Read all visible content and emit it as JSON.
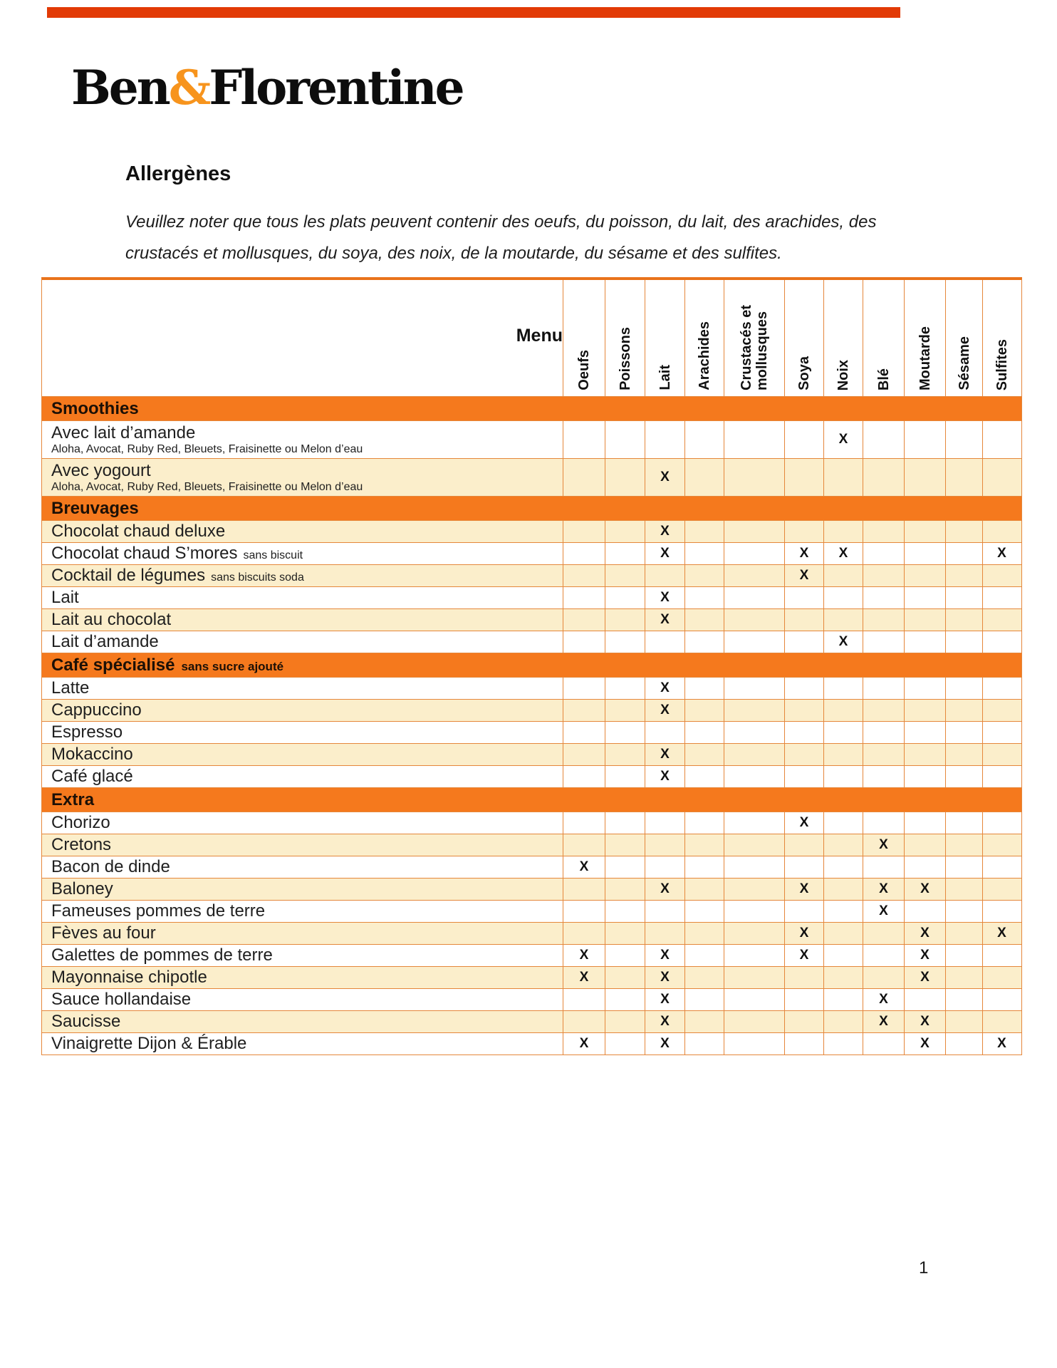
{
  "logo": {
    "ben": "Ben",
    "amp": "&",
    "florentine": "Florentine"
  },
  "heading": "Allergènes",
  "note_lines": [
    "Veuillez noter que tous les plats peuvent contenir des oeufs, du poisson, du lait, des arachides, des",
    "crustacés et mollusques, du soya, des noix, de la moutarde, du sésame et des sulfites."
  ],
  "page_number": "1",
  "colors": {
    "section_bar": "#F5791D",
    "grid_line": "#E5873B",
    "table_top_border": "#E9731B",
    "alt_row": "#FBEECB",
    "ampersand": "#F7941D",
    "top_accent_bar": "#E23A06"
  },
  "table": {
    "menu_header": "Menu",
    "mark": "X",
    "columns": [
      "Oeufs",
      "Poissons",
      "Lait",
      "Arachides",
      "Crustacés et mollusques",
      "Soya",
      "Noix",
      "Blé",
      "Moutarde",
      "Sésame",
      "Sulfites"
    ],
    "sections": [
      {
        "label": "Smoothies",
        "suffix": "",
        "items": [
          {
            "name": "Avec lait d’amande",
            "suffix": "",
            "note": "Aloha, Avocat, Ruby Red, Bleuets, Fraisinette ou Melon d’eau",
            "allergens": [
              "Noix"
            ]
          },
          {
            "name": "Avec yogourt",
            "suffix": "",
            "note": "Aloha, Avocat, Ruby Red, Bleuets, Fraisinette ou Melon d’eau",
            "allergens": [
              "Lait"
            ]
          }
        ]
      },
      {
        "label": "Breuvages",
        "suffix": "",
        "items": [
          {
            "name": "Chocolat chaud deluxe",
            "suffix": "",
            "note": "",
            "allergens": [
              "Lait"
            ]
          },
          {
            "name": "Chocolat chaud S’mores",
            "suffix": "sans biscuit",
            "note": "",
            "allergens": [
              "Lait",
              "Soya",
              "Noix",
              "Sulfites"
            ]
          },
          {
            "name": "Cocktail de légumes",
            "suffix": "sans biscuits soda",
            "note": "",
            "allergens": [
              "Soya"
            ]
          },
          {
            "name": "Lait",
            "suffix": "",
            "note": "",
            "allergens": [
              "Lait"
            ]
          },
          {
            "name": "Lait au chocolat",
            "suffix": "",
            "note": "",
            "allergens": [
              "Lait"
            ]
          },
          {
            "name": "Lait d’amande",
            "suffix": "",
            "note": "",
            "allergens": [
              "Noix"
            ]
          }
        ]
      },
      {
        "label": "Café spécialisé",
        "suffix": "sans sucre ajouté",
        "items": [
          {
            "name": "Latte",
            "suffix": "",
            "note": "",
            "allergens": [
              "Lait"
            ]
          },
          {
            "name": "Cappuccino",
            "suffix": "",
            "note": "",
            "allergens": [
              "Lait"
            ]
          },
          {
            "name": "Espresso",
            "suffix": "",
            "note": "",
            "allergens": []
          },
          {
            "name": "Mokaccino",
            "suffix": "",
            "note": "",
            "allergens": [
              "Lait"
            ]
          },
          {
            "name": "Café glacé",
            "suffix": "",
            "note": "",
            "allergens": [
              "Lait"
            ]
          }
        ]
      },
      {
        "label": "Extra",
        "suffix": "",
        "items": [
          {
            "name": "Chorizo",
            "suffix": "",
            "note": "",
            "allergens": [
              "Soya"
            ]
          },
          {
            "name": "Cretons",
            "suffix": "",
            "note": "",
            "allergens": [
              "Blé"
            ]
          },
          {
            "name": "Bacon de dinde",
            "suffix": "",
            "note": "",
            "allergens": [
              "Oeufs"
            ]
          },
          {
            "name": "Baloney",
            "suffix": "",
            "note": "",
            "allergens": [
              "Lait",
              "Soya",
              "Blé",
              "Moutarde"
            ]
          },
          {
            "name": "Fameuses pommes de terre",
            "suffix": "",
            "note": "",
            "allergens": [
              "Blé"
            ]
          },
          {
            "name": "Fèves au four",
            "suffix": "",
            "note": "",
            "allergens": [
              "Soya",
              "Moutarde",
              "Sulfites"
            ]
          },
          {
            "name": "Galettes de pommes de terre",
            "suffix": "",
            "note": "",
            "allergens": [
              "Oeufs",
              "Lait",
              "Soya",
              "Moutarde"
            ]
          },
          {
            "name": "Mayonnaise chipotle",
            "suffix": "",
            "note": "",
            "allergens": [
              "Oeufs",
              "Lait",
              "Moutarde"
            ]
          },
          {
            "name": "Sauce hollandaise",
            "suffix": "",
            "note": "",
            "allergens": [
              "Lait",
              "Blé"
            ]
          },
          {
            "name": "Saucisse",
            "suffix": "",
            "note": "",
            "allergens": [
              "Lait",
              "Blé",
              "Moutarde"
            ]
          },
          {
            "name": "Vinaigrette Dijon & Érable",
            "suffix": "",
            "note": "",
            "allergens": [
              "Oeufs",
              "Lait",
              "Moutarde",
              "Sulfites"
            ]
          }
        ]
      }
    ]
  }
}
